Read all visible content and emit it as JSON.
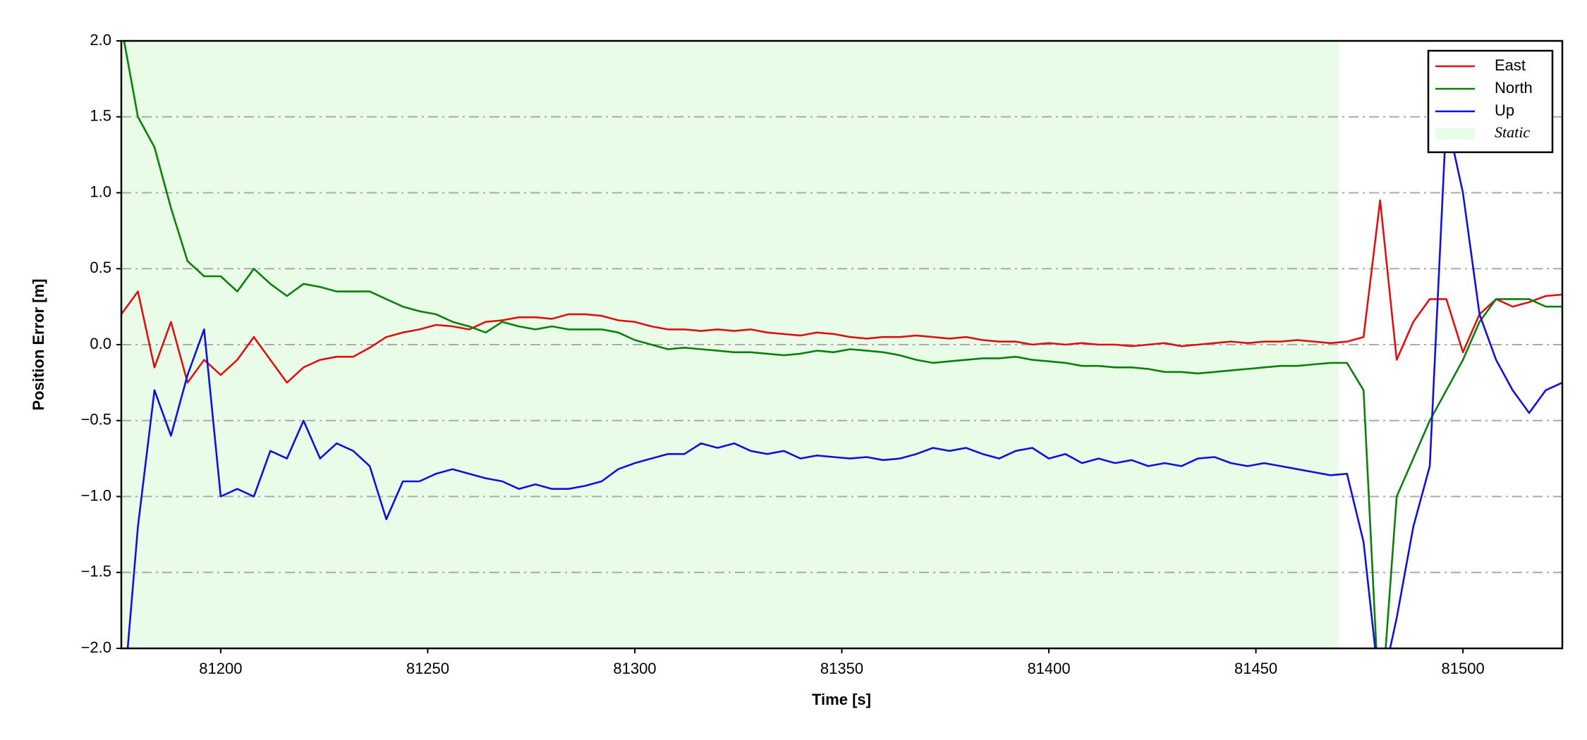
{
  "chart_data": {
    "type": "line",
    "xlabel": "Time [s]",
    "ylabel": "Position Error [m]",
    "x": [
      81176,
      81180,
      81184,
      81188,
      81192,
      81196,
      81200,
      81204,
      81208,
      81212,
      81216,
      81220,
      81224,
      81228,
      81232,
      81236,
      81240,
      81244,
      81248,
      81252,
      81256,
      81260,
      81264,
      81268,
      81272,
      81276,
      81280,
      81284,
      81288,
      81292,
      81296,
      81300,
      81304,
      81308,
      81312,
      81316,
      81320,
      81324,
      81328,
      81332,
      81336,
      81340,
      81344,
      81348,
      81352,
      81356,
      81360,
      81364,
      81368,
      81372,
      81376,
      81380,
      81384,
      81388,
      81392,
      81396,
      81400,
      81404,
      81408,
      81412,
      81416,
      81420,
      81424,
      81428,
      81432,
      81436,
      81440,
      81444,
      81448,
      81452,
      81456,
      81460,
      81464,
      81468,
      81472,
      81476,
      81480,
      81484,
      81488,
      81492,
      81496,
      81500,
      81504,
      81508,
      81512,
      81516,
      81520,
      81524
    ],
    "series": [
      {
        "name": "East",
        "color": "#dd1111",
        "values": [
          0.2,
          0.35,
          -0.15,
          0.15,
          -0.25,
          -0.1,
          -0.2,
          -0.1,
          0.05,
          -0.1,
          -0.25,
          -0.15,
          -0.1,
          -0.08,
          -0.08,
          -0.02,
          0.05,
          0.08,
          0.1,
          0.13,
          0.12,
          0.1,
          0.15,
          0.16,
          0.18,
          0.18,
          0.17,
          0.2,
          0.2,
          0.19,
          0.16,
          0.15,
          0.12,
          0.1,
          0.1,
          0.09,
          0.1,
          0.09,
          0.1,
          0.08,
          0.07,
          0.06,
          0.08,
          0.07,
          0.05,
          0.04,
          0.05,
          0.05,
          0.06,
          0.05,
          0.04,
          0.05,
          0.03,
          0.02,
          0.02,
          0.0,
          0.01,
          0.0,
          0.01,
          0.0,
          0.0,
          -0.01,
          0.0,
          0.01,
          -0.01,
          0.0,
          0.01,
          0.02,
          0.01,
          0.02,
          0.02,
          0.03,
          0.02,
          0.01,
          0.02,
          0.05,
          0.95,
          -0.1,
          0.15,
          0.3,
          0.3,
          -0.05,
          0.2,
          0.3,
          0.25,
          0.28,
          0.32,
          0.33
        ]
      },
      {
        "name": "North",
        "color": "#0a800a",
        "values": [
          2.1,
          1.5,
          1.3,
          0.9,
          0.55,
          0.45,
          0.45,
          0.35,
          0.5,
          0.4,
          0.32,
          0.4,
          0.38,
          0.35,
          0.35,
          0.35,
          0.3,
          0.25,
          0.22,
          0.2,
          0.15,
          0.12,
          0.08,
          0.15,
          0.12,
          0.1,
          0.12,
          0.1,
          0.1,
          0.1,
          0.08,
          0.03,
          0.0,
          -0.03,
          -0.02,
          -0.03,
          -0.04,
          -0.05,
          -0.05,
          -0.06,
          -0.07,
          -0.06,
          -0.04,
          -0.05,
          -0.03,
          -0.04,
          -0.05,
          -0.07,
          -0.1,
          -0.12,
          -0.11,
          -0.1,
          -0.09,
          -0.09,
          -0.08,
          -0.1,
          -0.11,
          -0.12,
          -0.14,
          -0.14,
          -0.15,
          -0.15,
          -0.16,
          -0.18,
          -0.18,
          -0.19,
          -0.18,
          -0.17,
          -0.16,
          -0.15,
          -0.14,
          -0.14,
          -0.13,
          -0.12,
          -0.12,
          -0.3,
          -2.5,
          -1.0,
          -0.75,
          -0.5,
          -0.3,
          -0.1,
          0.15,
          0.3,
          0.3,
          0.3,
          0.25,
          0.25
        ]
      },
      {
        "name": "Up",
        "color": "#1010dd",
        "values": [
          -2.5,
          -1.2,
          -0.3,
          -0.6,
          -0.2,
          0.1,
          -1.0,
          -0.95,
          -1.0,
          -0.7,
          -0.75,
          -0.5,
          -0.75,
          -0.65,
          -0.7,
          -0.8,
          -1.15,
          -0.9,
          -0.9,
          -0.85,
          -0.82,
          -0.85,
          -0.88,
          -0.9,
          -0.95,
          -0.92,
          -0.95,
          -0.95,
          -0.93,
          -0.9,
          -0.82,
          -0.78,
          -0.75,
          -0.72,
          -0.72,
          -0.65,
          -0.68,
          -0.65,
          -0.7,
          -0.72,
          -0.7,
          -0.75,
          -0.73,
          -0.74,
          -0.75,
          -0.74,
          -0.76,
          -0.75,
          -0.72,
          -0.68,
          -0.7,
          -0.68,
          -0.72,
          -0.75,
          -0.7,
          -0.68,
          -0.75,
          -0.72,
          -0.78,
          -0.75,
          -0.78,
          -0.76,
          -0.8,
          -0.78,
          -0.8,
          -0.75,
          -0.74,
          -0.78,
          -0.8,
          -0.78,
          -0.8,
          -0.82,
          -0.84,
          -0.86,
          -0.85,
          -1.3,
          -2.3,
          -1.8,
          -1.2,
          -0.8,
          1.5,
          1.0,
          0.2,
          -0.1,
          -0.3,
          -0.45,
          -0.3,
          -0.25
        ]
      }
    ],
    "spans": [
      {
        "name": "Static",
        "start": 81176,
        "end": 81470,
        "color": "#e8fce8"
      }
    ],
    "xlim": [
      81176,
      81524
    ],
    "xticks": [
      81200,
      81250,
      81300,
      81350,
      81400,
      81450,
      81500
    ],
    "ylim": [
      -2,
      2
    ],
    "yticks": [
      {
        "value": -2,
        "label": "−2.0"
      },
      {
        "value": -1.5,
        "label": "−1.5"
      },
      {
        "value": -1,
        "label": "−1.0"
      },
      {
        "value": -0.5,
        "label": "−0.5"
      },
      {
        "value": 0,
        "label": "0.0"
      },
      0.5,
      {
        "value": 1,
        "label": "1.0"
      },
      1.5,
      {
        "value": 2,
        "label": "2.0"
      }
    ],
    "grid": true,
    "legend": "upper right"
  }
}
